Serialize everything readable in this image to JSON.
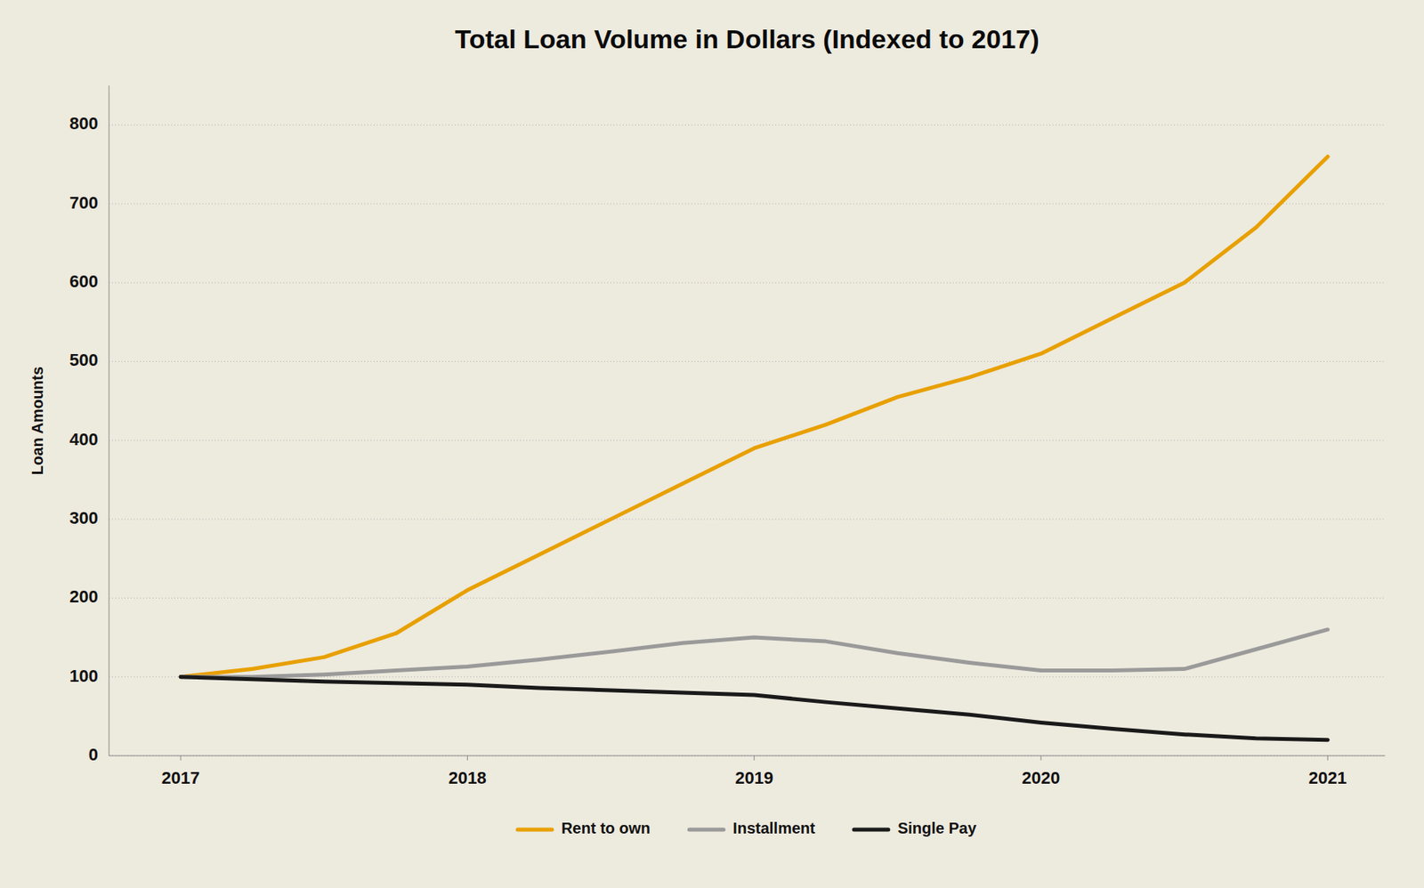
{
  "chart_data": {
    "type": "line",
    "title": "Total Loan Volume in Dollars (Indexed to 2017)",
    "ylabel": "Loan Amounts",
    "x": [
      2017,
      2017.25,
      2017.5,
      2017.75,
      2018,
      2018.25,
      2018.5,
      2018.75,
      2019,
      2019.25,
      2019.5,
      2019.75,
      2020,
      2020.25,
      2020.5,
      2020.75,
      2021
    ],
    "series": [
      {
        "name": "Rent to own",
        "color": "#E8A000",
        "values": [
          100,
          110,
          125,
          155,
          210,
          255,
          300,
          345,
          390,
          420,
          455,
          480,
          510,
          555,
          600,
          670,
          760
        ]
      },
      {
        "name": "Installment",
        "color": "#9A9A9A",
        "values": [
          100,
          100,
          103,
          108,
          113,
          122,
          132,
          143,
          150,
          145,
          130,
          118,
          108,
          108,
          110,
          135,
          160
        ]
      },
      {
        "name": "Single Pay",
        "color": "#1a1a1a",
        "values": [
          100,
          97,
          94,
          92,
          90,
          86,
          83,
          80,
          77,
          68,
          60,
          52,
          42,
          34,
          27,
          22,
          20
        ]
      }
    ],
    "xlim": [
      2016.75,
      2021.2
    ],
    "xticks": [
      2017,
      2018,
      2019,
      2020,
      2021
    ],
    "ylim": [
      0,
      850
    ],
    "yticks": [
      0,
      100,
      200,
      300,
      400,
      500,
      600,
      700,
      800
    ],
    "grid": true,
    "legend": "bottom"
  }
}
